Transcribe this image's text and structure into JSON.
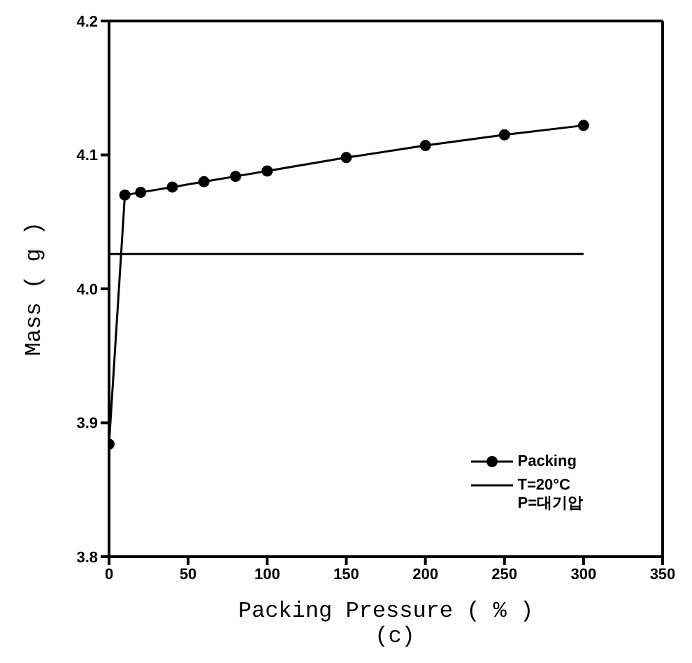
{
  "chart_data": {
    "type": "line",
    "xlabel": "Packing Pressure ( % )",
    "ylabel": "Mass ( g )",
    "annotations": [
      "(c)"
    ],
    "xlim": [
      0,
      350
    ],
    "xticks": [
      0,
      50,
      100,
      150,
      200,
      250,
      300,
      350
    ],
    "ylim": [
      3.8,
      4.2
    ],
    "yticks": [
      3.8,
      3.9,
      {
        "value": 4,
        "label": "4.0"
      },
      4.1,
      4.2
    ],
    "legend": "bottom right",
    "series": [
      {
        "name": "Packing",
        "color": "#000000",
        "marker": "circle",
        "x": [
          0,
          10,
          20,
          40,
          60,
          80,
          100,
          150,
          200,
          250,
          300
        ],
        "values": [
          3.884,
          4.07,
          4.072,
          4.076,
          4.08,
          4.084,
          4.088,
          4.098,
          4.107,
          4.115,
          4.122
        ]
      },
      {
        "name": "T=20°C\nP=대기압",
        "color": "#000000",
        "marker": "none",
        "x": [
          0,
          300
        ],
        "values": [
          4.026,
          4.026
        ]
      }
    ]
  }
}
